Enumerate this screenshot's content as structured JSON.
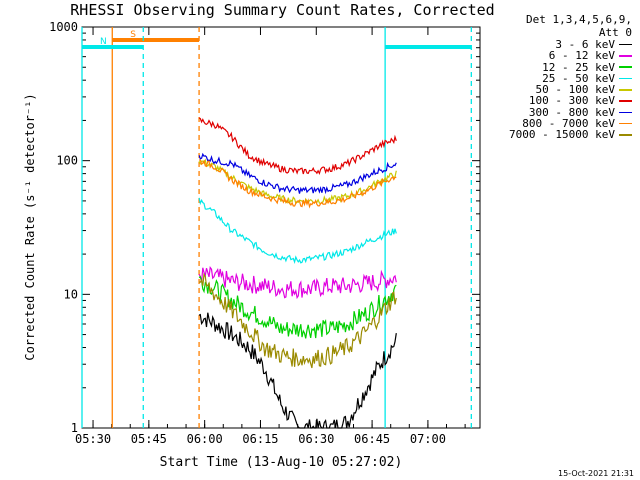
{
  "chart_data": {
    "type": "line",
    "title": "RHESSI Observing Summary Count Rates, Corrected",
    "xlabel": "Start Time (13-Aug-10 05:27:02)",
    "ylabel": "Corrected Count Rate (s⁻¹ detector⁻¹)",
    "yscale": "log",
    "ylim": [
      1,
      1000
    ],
    "xlim": [
      "05:27:02",
      "07:14:00"
    ],
    "xticks": [
      "05:30",
      "05:45",
      "06:00",
      "06:15",
      "06:30",
      "06:45",
      "07:00"
    ],
    "yticks": [
      "1",
      "10",
      "100",
      "1000"
    ],
    "legend_header": [
      "Det 1,3,4,5,6,9,",
      "Att 0"
    ],
    "data_start": "05:58:30",
    "data_end": "06:51:30",
    "series": [
      {
        "name": "3 - 6 keV",
        "color": "#000000",
        "values": [
          7,
          6,
          5,
          4,
          2.8,
          1.5,
          1,
          1,
          1,
          1.1,
          1.8,
          3,
          4.5
        ]
      },
      {
        "name": "6 - 12 keV",
        "color": "#e000e0",
        "values": [
          14,
          13.5,
          12.5,
          12,
          11.5,
          11,
          11,
          11,
          11.5,
          11.5,
          12,
          12.5,
          13.5
        ]
      },
      {
        "name": "12 - 25 keV",
        "color": "#00d000",
        "values": [
          13,
          11,
          9,
          7.5,
          6.5,
          5.5,
          5.5,
          5.5,
          5.5,
          6,
          7,
          8.5,
          11
        ]
      },
      {
        "name": "25 - 50 keV",
        "color": "#00e8e8",
        "values": [
          50,
          40,
          30,
          25,
          21,
          19,
          18,
          18.5,
          19.5,
          21,
          24,
          27,
          30
        ]
      },
      {
        "name": "50 - 100 keV",
        "color": "#c8c800",
        "values": [
          100,
          90,
          75,
          63,
          56,
          52,
          50,
          50,
          51,
          54,
          60,
          70,
          80
        ]
      },
      {
        "name": "100 - 300 keV",
        "color": "#e00000",
        "values": [
          200,
          185,
          150,
          110,
          95,
          87,
          83,
          84,
          87,
          95,
          110,
          130,
          145
        ]
      },
      {
        "name": "300 - 800 keV",
        "color": "#0000e0",
        "values": [
          110,
          100,
          95,
          78,
          68,
          62,
          60,
          60,
          62,
          66,
          75,
          85,
          95
        ]
      },
      {
        "name": "800 - 7000 keV",
        "color": "#ff8000",
        "values": [
          100,
          90,
          72,
          60,
          54,
          50,
          48,
          48,
          49,
          52,
          58,
          67,
          77
        ]
      },
      {
        "name": "7000 - 15000 keV",
        "color": "#9a8a00",
        "values": [
          13,
          10,
          7.5,
          5.5,
          4,
          3.5,
          3.3,
          3.3,
          3.5,
          4,
          5,
          7,
          10
        ]
      }
    ],
    "flags": [
      {
        "label": "S",
        "color": "#ff8000",
        "start": "05:35:10",
        "end": "05:58:30",
        "boundary_solid": "05:35:10",
        "boundary_dashed": "05:58:30"
      },
      {
        "label": "N",
        "color": "#00e8e8",
        "start": "05:27:02",
        "end": "05:43:30",
        "boundary_solid": "05:27:02",
        "boundary_dashed": "05:43:30"
      },
      {
        "label": "",
        "color": "#00e8e8",
        "start": "06:48:30",
        "end": "07:11:40",
        "boundary_solid": "06:48:30",
        "boundary_dashed": "07:11:40"
      }
    ]
  },
  "footer": {
    "timestamp": "15-Oct-2021 21:31"
  }
}
